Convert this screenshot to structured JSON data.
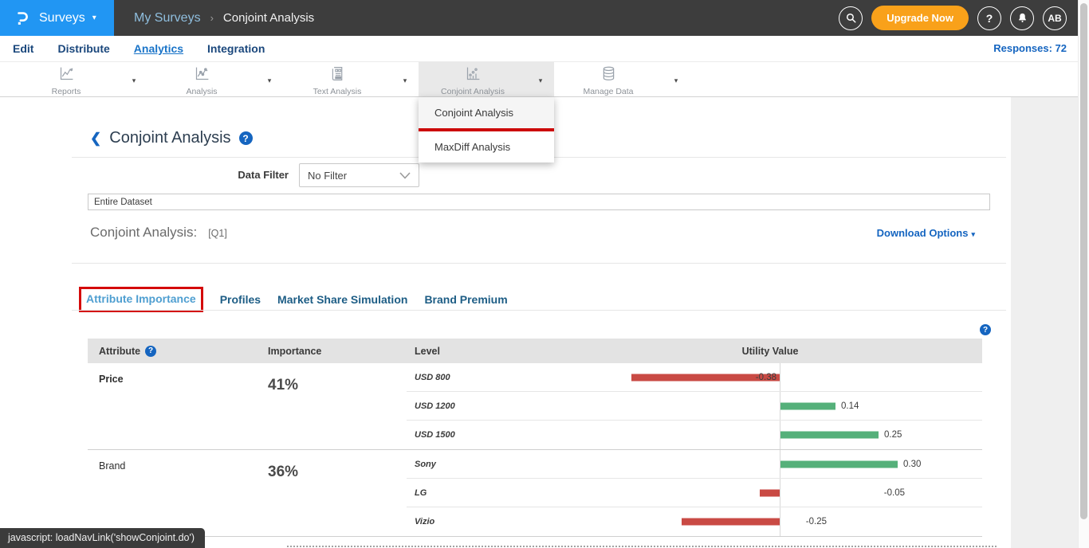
{
  "icons": {
    "caret_down": "▾",
    "back_chevron": "❮",
    "help_glyph": "?",
    "breadcrumb_sep": "›",
    "select_chevron": "⌄"
  },
  "topbar": {
    "app_menu_label": "Surveys",
    "breadcrumb": {
      "parent": "My Surveys",
      "current": "Conjoint Analysis"
    },
    "upgrade_label": "Upgrade Now",
    "avatar_initials": "AB"
  },
  "survey_nav": {
    "items": [
      {
        "label": "Edit",
        "active": false
      },
      {
        "label": "Distribute",
        "active": false
      },
      {
        "label": "Analytics",
        "active": true
      },
      {
        "label": "Integration",
        "active": false
      }
    ],
    "responses_label": "Responses: 72"
  },
  "toolbar": {
    "items": [
      {
        "label": "Reports",
        "icon": "line-chart-icon",
        "selected": false
      },
      {
        "label": "Analysis",
        "icon": "scatter-line-icon",
        "selected": false
      },
      {
        "label": "Text Analysis",
        "icon": "news-doc-icon",
        "selected": false
      },
      {
        "label": "Conjoint Analysis",
        "icon": "dot-chart-icon",
        "selected": true
      },
      {
        "label": "Manage Data",
        "icon": "database-icon",
        "selected": false
      }
    ],
    "dropdown": {
      "items": [
        {
          "label": "Conjoint Analysis",
          "hovered": true,
          "annotated": true
        },
        {
          "label": "MaxDiff Analysis",
          "hovered": false,
          "annotated": false
        }
      ]
    }
  },
  "main": {
    "page_title": "Conjoint Analysis",
    "data_filter_label": "Data Filter",
    "data_filter_value": "No Filter",
    "dataset_value": "Entire Dataset",
    "section_title": "Conjoint Analysis:",
    "question_ref": "[Q1]",
    "download_options_label": "Download Options",
    "tabs": [
      {
        "label": "Attribute Importance",
        "active": true,
        "annotated": true
      },
      {
        "label": "Profiles",
        "active": false,
        "annotated": false
      },
      {
        "label": "Market Share Simulation",
        "active": false,
        "annotated": false
      },
      {
        "label": "Brand Premium",
        "active": false,
        "annotated": false
      }
    ]
  },
  "chart_data": {
    "type": "bar",
    "title": "Conjoint Analysis Attribute Importance — Utility Values",
    "columns": [
      "Attribute",
      "Importance",
      "Level",
      "Utility Value"
    ],
    "orientation": "horizontal-diverging",
    "axis": {
      "center_zero": true
    },
    "positive_color": "#55b07a",
    "negative_color": "#c94a44",
    "groups": [
      {
        "attribute": "Price",
        "importance": "41%",
        "levels": [
          {
            "name": "USD 800",
            "utility": -0.38
          },
          {
            "name": "USD 1200",
            "utility": 0.14
          },
          {
            "name": "USD 1500",
            "utility": 0.25
          }
        ]
      },
      {
        "attribute": "Brand",
        "importance": "36%",
        "levels": [
          {
            "name": "Sony",
            "utility": 0.3
          },
          {
            "name": "LG",
            "utility": -0.05
          },
          {
            "name": "Vizio",
            "utility": -0.25
          }
        ]
      }
    ]
  },
  "status_bar": {
    "text": "javascript: loadNavLink('showConjoint.do')"
  }
}
